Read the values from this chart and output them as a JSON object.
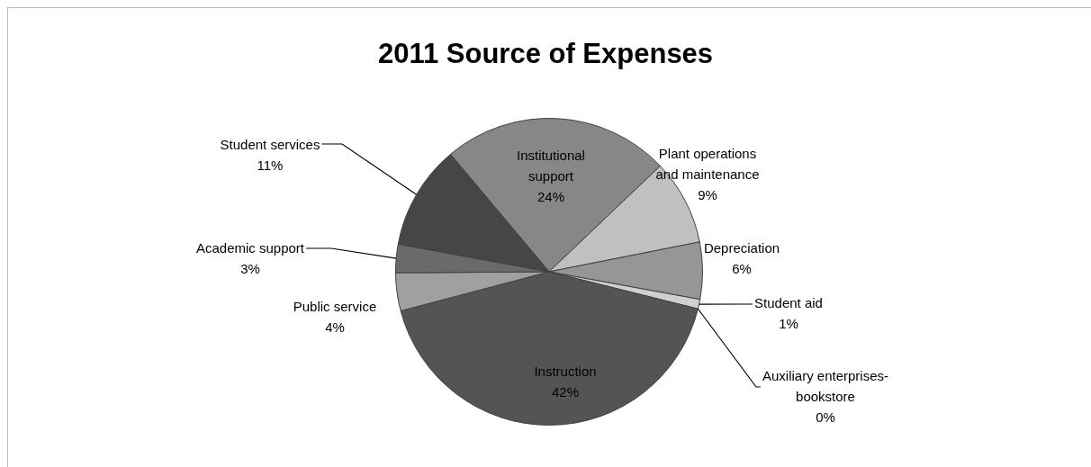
{
  "chart_data": {
    "type": "pie",
    "title": "2011 Source of Expenses",
    "categories": [
      "Institutional support",
      "Plant operations and maintenance",
      "Depreciation",
      "Student aid",
      "Auxiliary enterprises-bookstore",
      "Instruction",
      "Public service",
      "Academic support",
      "Student services"
    ],
    "values": [
      24,
      9,
      6,
      1,
      0,
      42,
      4,
      3,
      11
    ],
    "colors": [
      "#878787",
      "#c0c0c0",
      "#969696",
      "#d0d0d0",
      "#a0a0a0",
      "#545454",
      "#a0a0a0",
      "#6a6a6a",
      "#464646"
    ],
    "value_labels": [
      "24%",
      "9%",
      "6%",
      "1%",
      "0%",
      "42%",
      "4%",
      "3%",
      "11%"
    ],
    "legend": false
  }
}
